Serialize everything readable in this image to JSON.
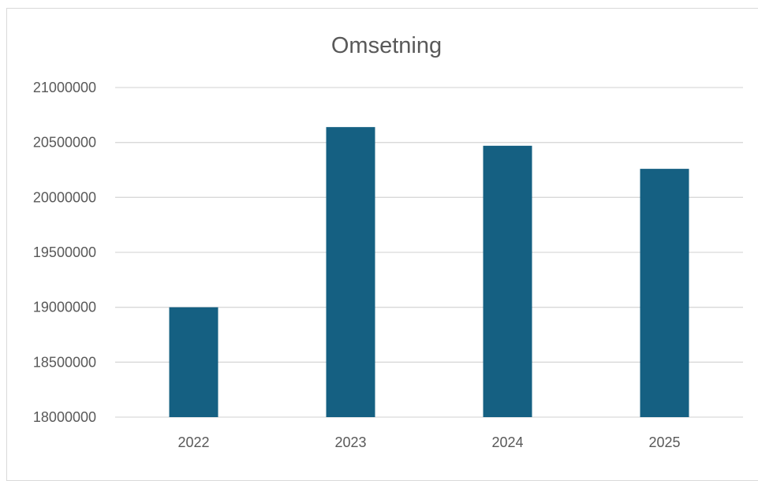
{
  "chart_data": {
    "type": "bar",
    "title": "Omsetning",
    "categories": [
      "2022",
      "2023",
      "2024",
      "2025"
    ],
    "values": [
      19000000,
      20640000,
      20470000,
      20260000
    ],
    "ylim": [
      18000000,
      21000000
    ],
    "yticks": [
      18000000,
      18500000,
      19000000,
      19500000,
      20000000,
      20500000,
      21000000
    ],
    "ytick_labels": [
      "18000000",
      "18500000",
      "19000000",
      "19500000",
      "20000000",
      "20500000",
      "21000000"
    ],
    "grid": true,
    "legend": "none",
    "colors": {
      "bar": "#156082",
      "grid": "#d9d9d9",
      "text": "#595959"
    }
  }
}
